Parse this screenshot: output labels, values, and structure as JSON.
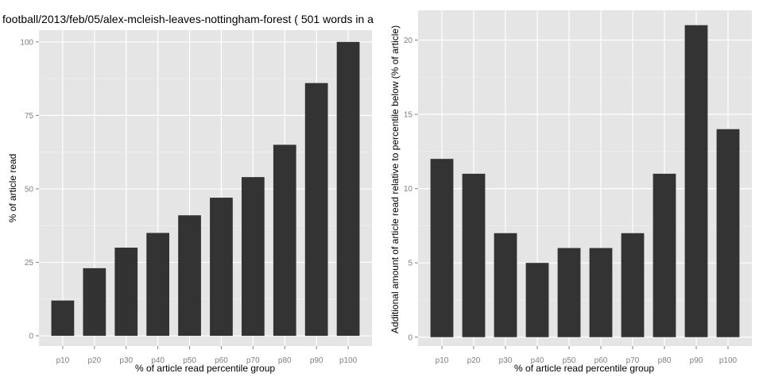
{
  "chart_data": [
    {
      "type": "bar",
      "title": "football/2013/feb/05/alex-mcleish-leaves-nottingham-forest ( 501 words in a",
      "xlabel": "% of article read percentile group",
      "ylabel": "% of article read",
      "categories": [
        "p10",
        "p20",
        "p30",
        "p40",
        "p50",
        "p60",
        "p70",
        "p80",
        "p90",
        "p100"
      ],
      "values": [
        12,
        23,
        30,
        35,
        41,
        47,
        54,
        65,
        86,
        100
      ],
      "ylim": [
        -3.5,
        104
      ],
      "yticks": [
        0,
        25,
        50,
        75,
        100
      ],
      "grid": true,
      "colors": {
        "panel": "#e5e5e5",
        "grid_major": "#ffffff",
        "grid_minor": "#f2f2f2",
        "bar": "#333333"
      }
    },
    {
      "type": "bar",
      "title": "",
      "xlabel": "% of article read percentile group",
      "ylabel": "Additional amount of article read relative to percentile below (% of article)",
      "categories": [
        "p10",
        "p20",
        "p30",
        "p40",
        "p50",
        "p60",
        "p70",
        "p80",
        "p90",
        "p100"
      ],
      "values": [
        12,
        11,
        7,
        5,
        6,
        6,
        7,
        11,
        21,
        14
      ],
      "ylim": [
        -0.6,
        22
      ],
      "yticks": [
        0,
        5,
        10,
        15,
        20
      ],
      "grid": true,
      "colors": {
        "panel": "#e5e5e5",
        "grid_major": "#ffffff",
        "grid_minor": "#f2f2f2",
        "bar": "#333333"
      }
    }
  ]
}
